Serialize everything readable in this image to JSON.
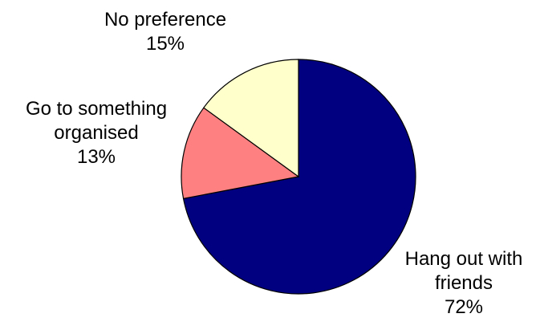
{
  "chart_data": {
    "type": "pie",
    "title": "",
    "slices": [
      {
        "label_lines": [
          "Hang out with",
          "friends"
        ],
        "value": 72,
        "value_label": "72%",
        "color": "#000080"
      },
      {
        "label_lines": [
          "Go to something",
          "organised"
        ],
        "value": 13,
        "value_label": "13%",
        "color": "#FF8080"
      },
      {
        "label_lines": [
          "No preference"
        ],
        "value": 15,
        "value_label": "15%",
        "color": "#FFFFCC"
      }
    ]
  }
}
